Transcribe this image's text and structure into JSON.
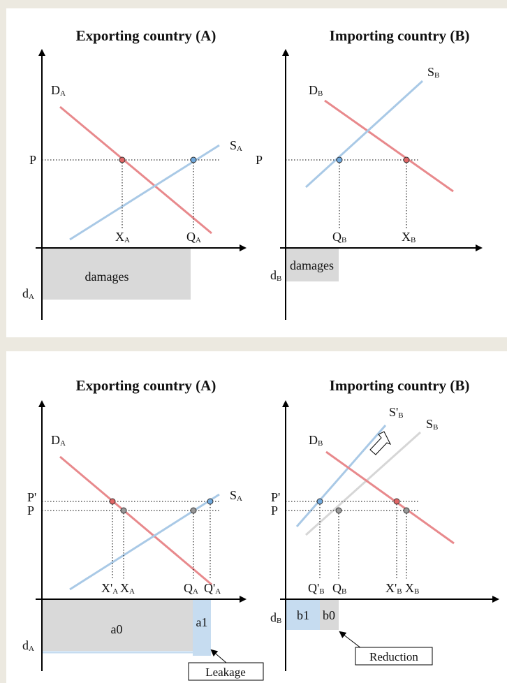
{
  "panels": [
    {
      "id": "baseline",
      "left_title": "Exporting country (A)",
      "right_title": "Importing country (B)",
      "left": {
        "price": "P",
        "demand": {
          "main": "D",
          "sub": "A"
        },
        "supply": {
          "main": "S",
          "sub": "A"
        },
        "x_label": {
          "main": "X",
          "sub": "A"
        },
        "q_label": {
          "main": "Q",
          "sub": "A"
        },
        "damages": "damages",
        "d_label": {
          "main": "d",
          "sub": "A"
        }
      },
      "right": {
        "price": "P",
        "demand": {
          "main": "D",
          "sub": "B"
        },
        "supply": {
          "main": "S",
          "sub": "B"
        },
        "q_label": {
          "main": "Q",
          "sub": "B"
        },
        "x_label": {
          "main": "X",
          "sub": "B"
        },
        "damages": "damages",
        "d_label": {
          "main": "d",
          "sub": "B"
        }
      }
    },
    {
      "id": "with-policy",
      "left_title": "Exporting country (A)",
      "right_title": "Importing country (B)",
      "left": {
        "price_new": "P'",
        "price": "P",
        "demand": {
          "main": "D",
          "sub": "A"
        },
        "supply": {
          "main": "S",
          "sub": "A"
        },
        "x_new": {
          "main": "X'",
          "sub": "A"
        },
        "x_label": {
          "main": "X",
          "sub": "A"
        },
        "q_label": {
          "main": "Q",
          "sub": "A"
        },
        "q_new": {
          "main": "Q'",
          "sub": "A"
        },
        "area_a0": "a0",
        "area_a1": "a1",
        "d_label": {
          "main": "d",
          "sub": "A"
        },
        "callout": "Leakage"
      },
      "right": {
        "price_new": "P'",
        "price": "P",
        "demand": {
          "main": "D",
          "sub": "B"
        },
        "supply_new": {
          "main": "S'",
          "sub": "B"
        },
        "supply": {
          "main": "S",
          "sub": "B"
        },
        "q_new": {
          "main": "Q'",
          "sub": "B"
        },
        "q_label": {
          "main": "Q",
          "sub": "B"
        },
        "x_new": {
          "main": "X'",
          "sub": "B"
        },
        "x_label": {
          "main": "X",
          "sub": "B"
        },
        "area_b1": "b1",
        "area_b0": "b0",
        "d_label": {
          "main": "d",
          "sub": "B"
        },
        "callout": "Reduction"
      }
    }
  ],
  "colors": {
    "demand": "#e8898c",
    "supply": "#a9c9e6",
    "supply_old": "#d6d6d6",
    "axis": "#000000",
    "damage_fill": "#d9d9d9",
    "leak_fill": "#c6dcf0",
    "dot_red": "#e06666",
    "dot_blue": "#6fa8dc",
    "dot_gray": "#999999"
  }
}
